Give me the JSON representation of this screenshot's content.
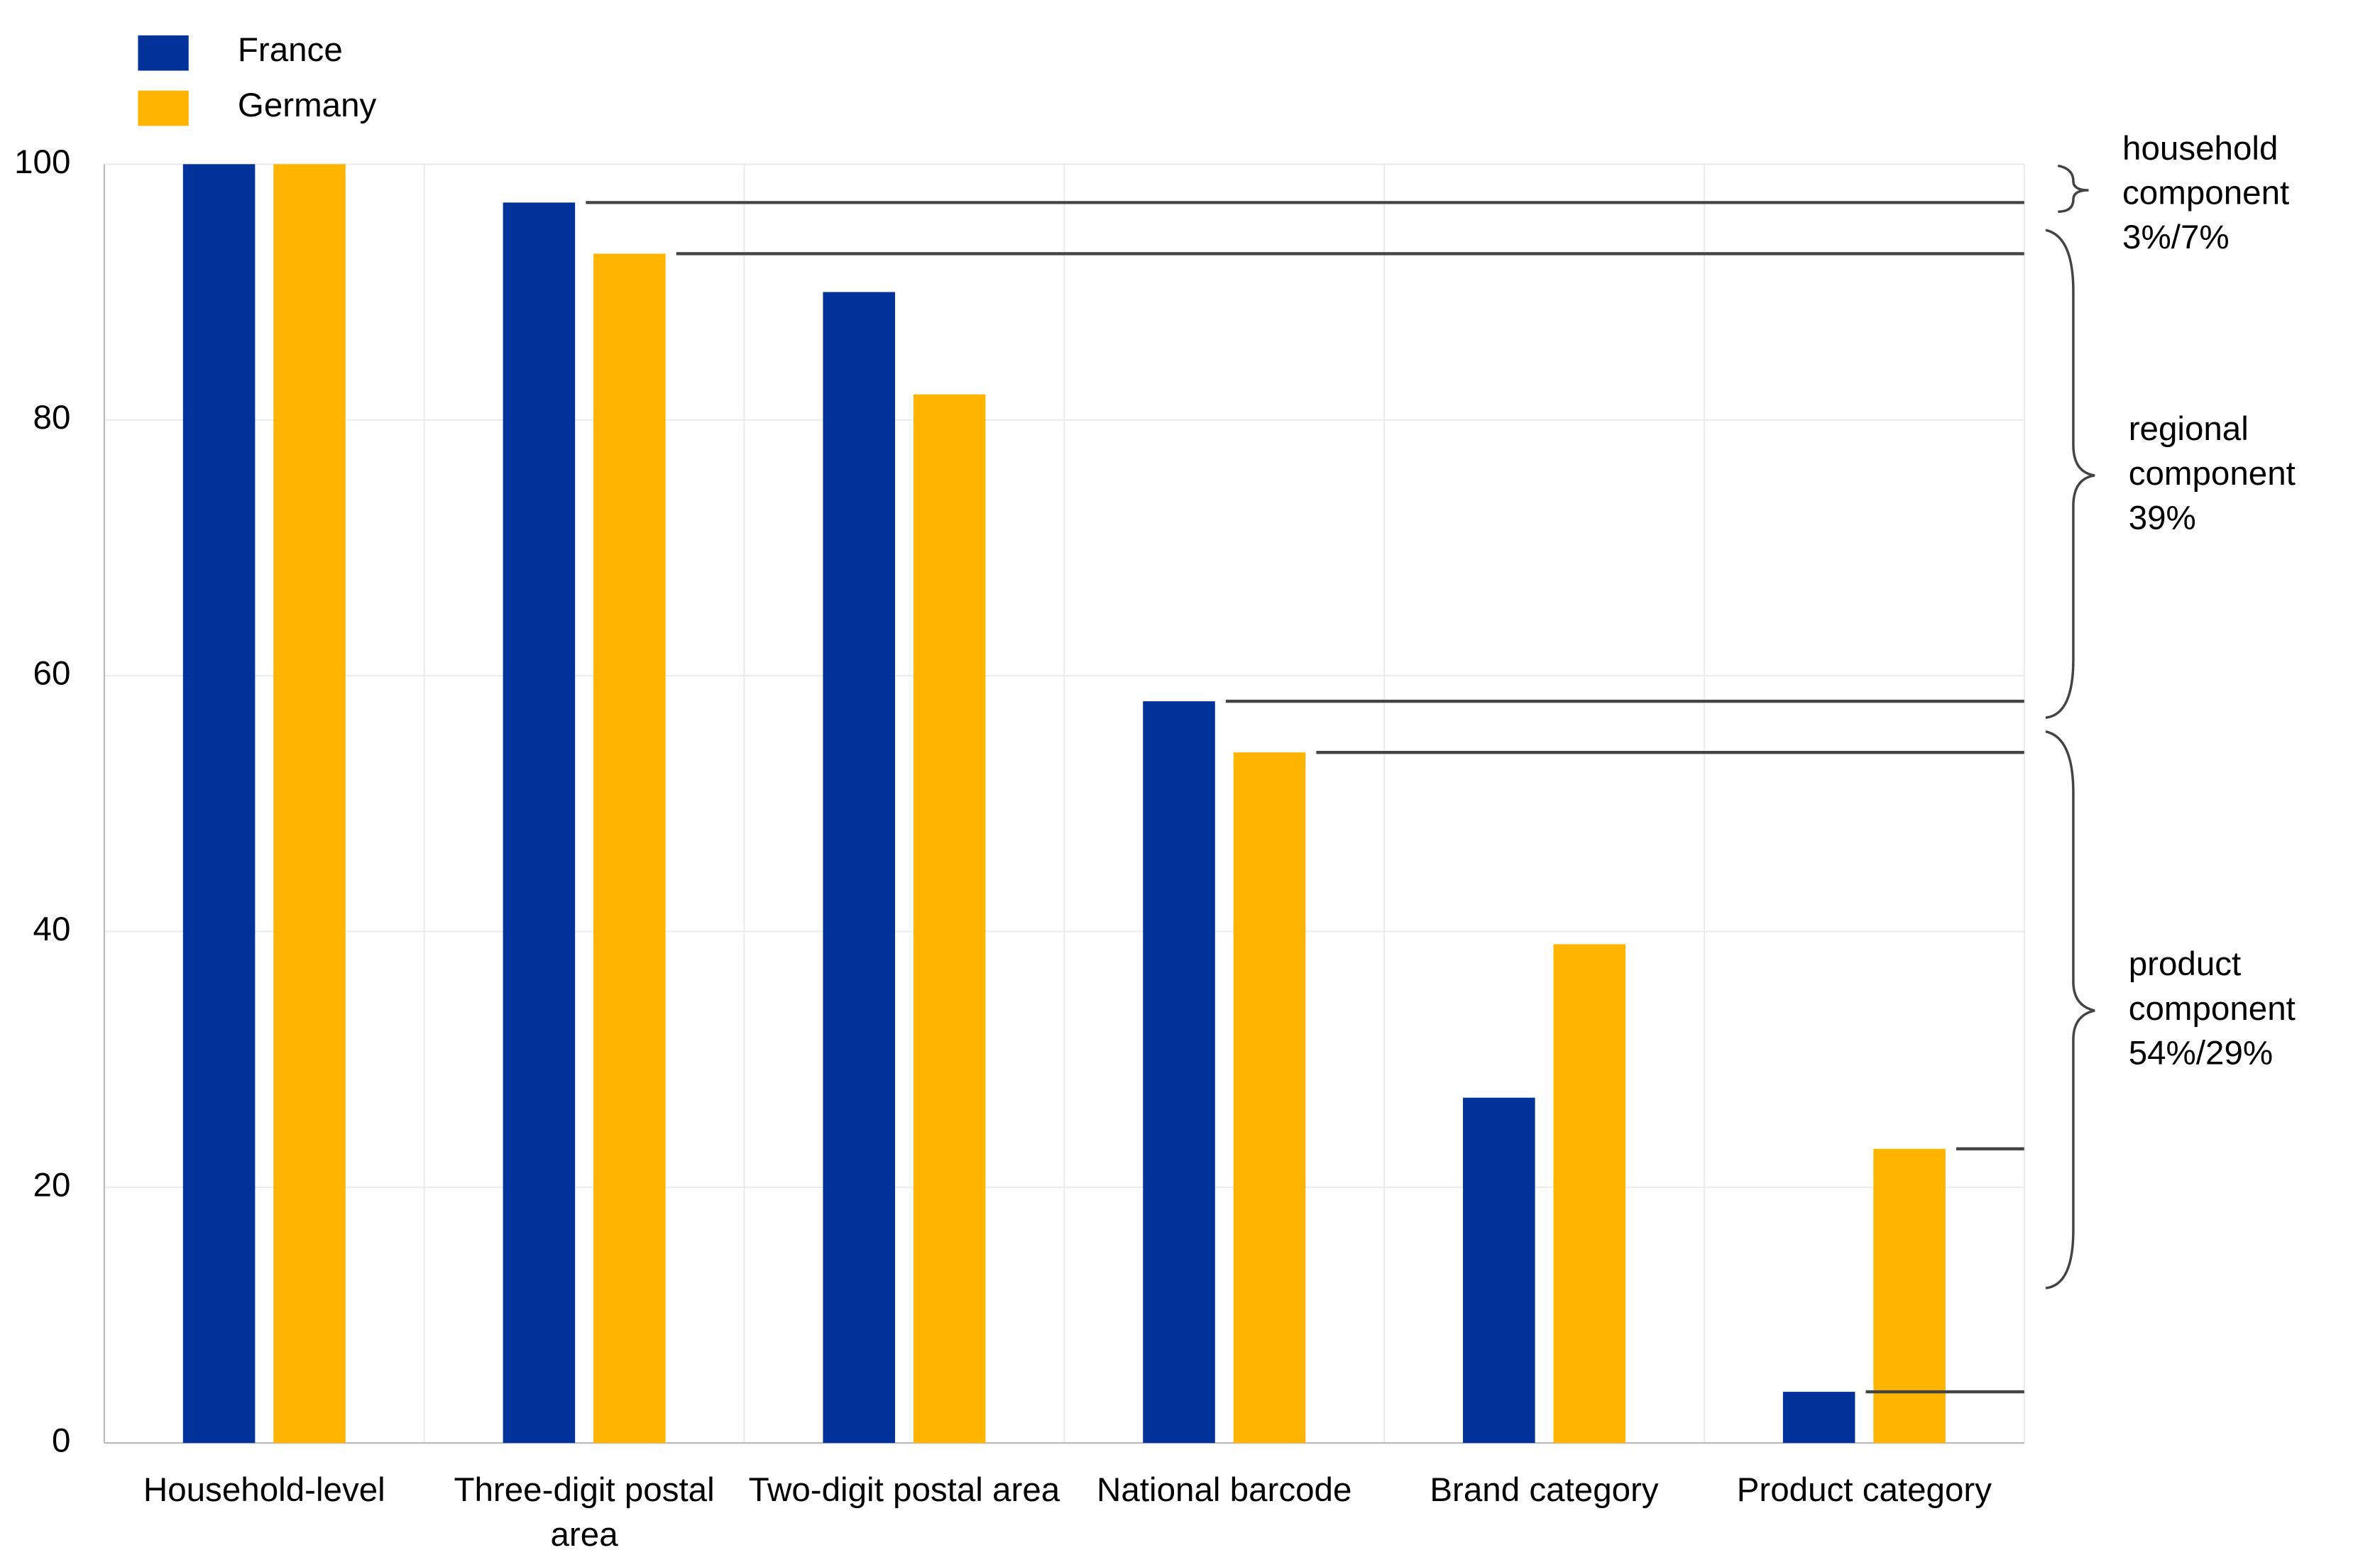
{
  "chart_data": {
    "type": "bar",
    "categories": [
      "Household-level",
      "Three-digit postal area",
      "Two-digit postal area",
      "National barcode",
      "Brand category",
      "Product category"
    ],
    "series": [
      {
        "name": "France",
        "color": "#003299",
        "values": [
          100,
          97,
          90,
          58,
          27,
          4
        ]
      },
      {
        "name": "Germany",
        "color": "#ffb400",
        "values": [
          100,
          93,
          82,
          54,
          39,
          23
        ]
      }
    ],
    "ylim": [
      0,
      100
    ],
    "yticks": [
      0,
      20,
      40,
      60,
      80,
      100
    ],
    "grid": true,
    "legend": "top-left",
    "annotations": [
      "household component 3%/7%",
      "regional component 39%",
      "product component 54%/29%"
    ]
  }
}
